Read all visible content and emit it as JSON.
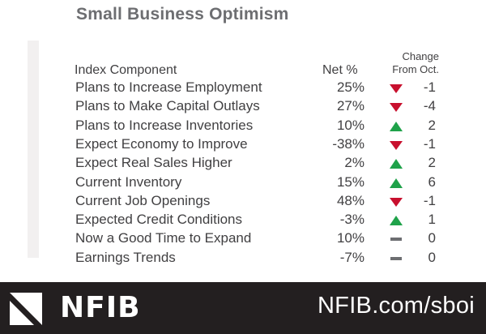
{
  "chart_data": {
    "type": "table",
    "title": "Small Business Optimism",
    "columns": [
      "Index Component",
      "Net %",
      "Change From Oct."
    ],
    "change_header": [
      "Change",
      "From Oct."
    ],
    "rows": [
      {
        "component": "Plans to Increase Employment",
        "net": "25%",
        "change": "-1",
        "direction": "down"
      },
      {
        "component": "Plans to Make Capital Outlays",
        "net": "27%",
        "change": "-4",
        "direction": "down"
      },
      {
        "component": "Plans to Increase Inventories",
        "net": "10%",
        "change": "2",
        "direction": "up"
      },
      {
        "component": "Expect Economy to Improve",
        "net": "-38%",
        "change": "-1",
        "direction": "down"
      },
      {
        "component": "Expect Real Sales Higher",
        "net": "2%",
        "change": "2",
        "direction": "up"
      },
      {
        "component": "Current Inventory",
        "net": "15%",
        "change": "6",
        "direction": "up"
      },
      {
        "component": "Current Job Openings",
        "net": "48%",
        "change": "-1",
        "direction": "down"
      },
      {
        "component": "Expected Credit Conditions",
        "net": "-3%",
        "change": "1",
        "direction": "up"
      },
      {
        "component": "Now a Good Time to Expand",
        "net": "10%",
        "change": "0",
        "direction": "flat"
      },
      {
        "component": "Earnings Trends",
        "net": "-7%",
        "change": "0",
        "direction": "flat"
      }
    ]
  },
  "colors": {
    "up": "#1fa24a",
    "down": "#c8102e",
    "flat": "#6d6e71",
    "footer_bg": "#231f20",
    "title": "#6d6e71"
  },
  "icons": {
    "up": "up-triangle-icon",
    "down": "down-triangle-icon",
    "flat": "dash-icon"
  },
  "footer": {
    "logo_text": "NFIB",
    "url": "NFIB.com/sboi"
  }
}
